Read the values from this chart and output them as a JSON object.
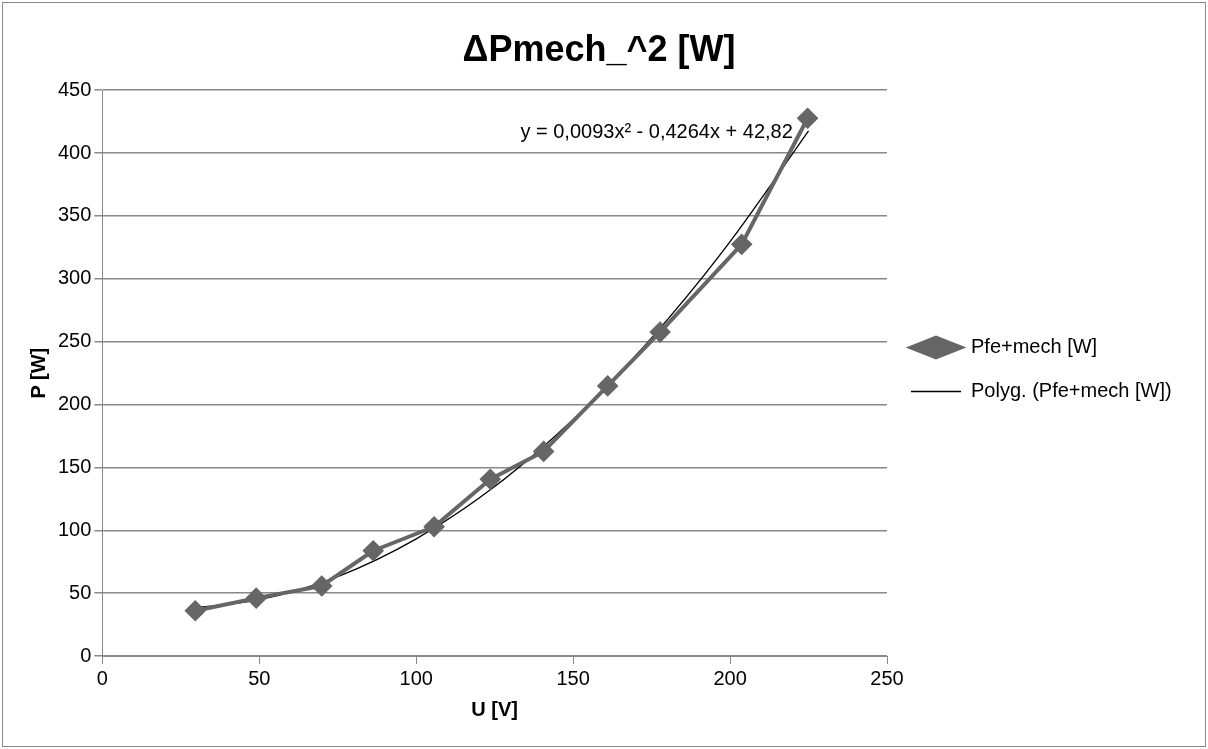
{
  "chart_data": {
    "type": "line",
    "title": "ΔPmech_^2 [W]",
    "xlabel": "U [V]",
    "ylabel": "P [W]",
    "xlim": [
      0,
      250
    ],
    "xticks": [
      0,
      50,
      100,
      150,
      200,
      250
    ],
    "ylim": [
      0,
      450
    ],
    "yticks": [
      0,
      50,
      100,
      150,
      200,
      250,
      300,
      350,
      400,
      450
    ],
    "grid": "y",
    "legend": "right",
    "annotations": [
      "y = 0,0093x² - 0,4264x + 42,82"
    ],
    "series": [
      {
        "name": "Pfe+mech [W]",
        "color": "#666666",
        "marker": "diamond",
        "x": [
          29.6,
          49,
          69.9,
          86.3,
          105.7,
          123.6,
          140.6,
          161,
          177.7,
          203.7,
          224.7
        ],
        "values": [
          36,
          46,
          55.7,
          83.7,
          102.8,
          140.6,
          162.7,
          214.8,
          257.6,
          327.4,
          427.7
        ]
      },
      {
        "name": "Polyg. (Pfe+mech [W])",
        "color": "#000000",
        "type": "line",
        "marker": "none",
        "x": [
          30,
          50,
          75,
          100,
          125,
          150,
          175,
          200,
          225
        ],
        "values": [
          38.4,
          44.8,
          63.2,
          93.2,
          134.8,
          188.1,
          253,
          329.5,
          417.7
        ]
      }
    ]
  }
}
